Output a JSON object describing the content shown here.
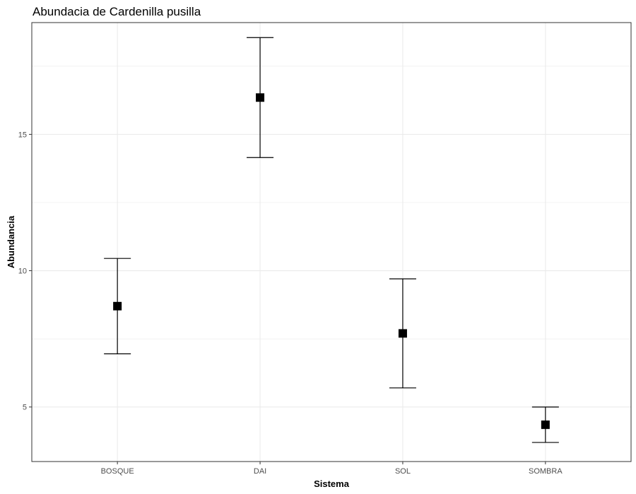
{
  "chart_data": {
    "type": "scatter",
    "title": "Abundacia de Cardenilla pusilla",
    "xlabel": "Sistema",
    "ylabel": "Abundancia",
    "categories": [
      "BOSQUE",
      "DAI",
      "SOL",
      "SOMBRA"
    ],
    "series": [
      {
        "values": [
          8.7,
          16.35,
          7.7,
          4.35
        ],
        "error_lower": [
          6.95,
          14.15,
          5.7,
          3.7
        ],
        "error_upper": [
          10.45,
          18.55,
          9.7,
          5.0
        ]
      }
    ],
    "ylim": [
      3.0,
      19.1
    ],
    "yticks": [
      5,
      10,
      15
    ],
    "ytick_labels": [
      "5",
      "10",
      "15"
    ],
    "grid": true,
    "marker": "square",
    "colors": {
      "point": "#000000",
      "errorbar": "#000000",
      "grid": "#ebebeb",
      "panel_border": "#333333"
    }
  }
}
